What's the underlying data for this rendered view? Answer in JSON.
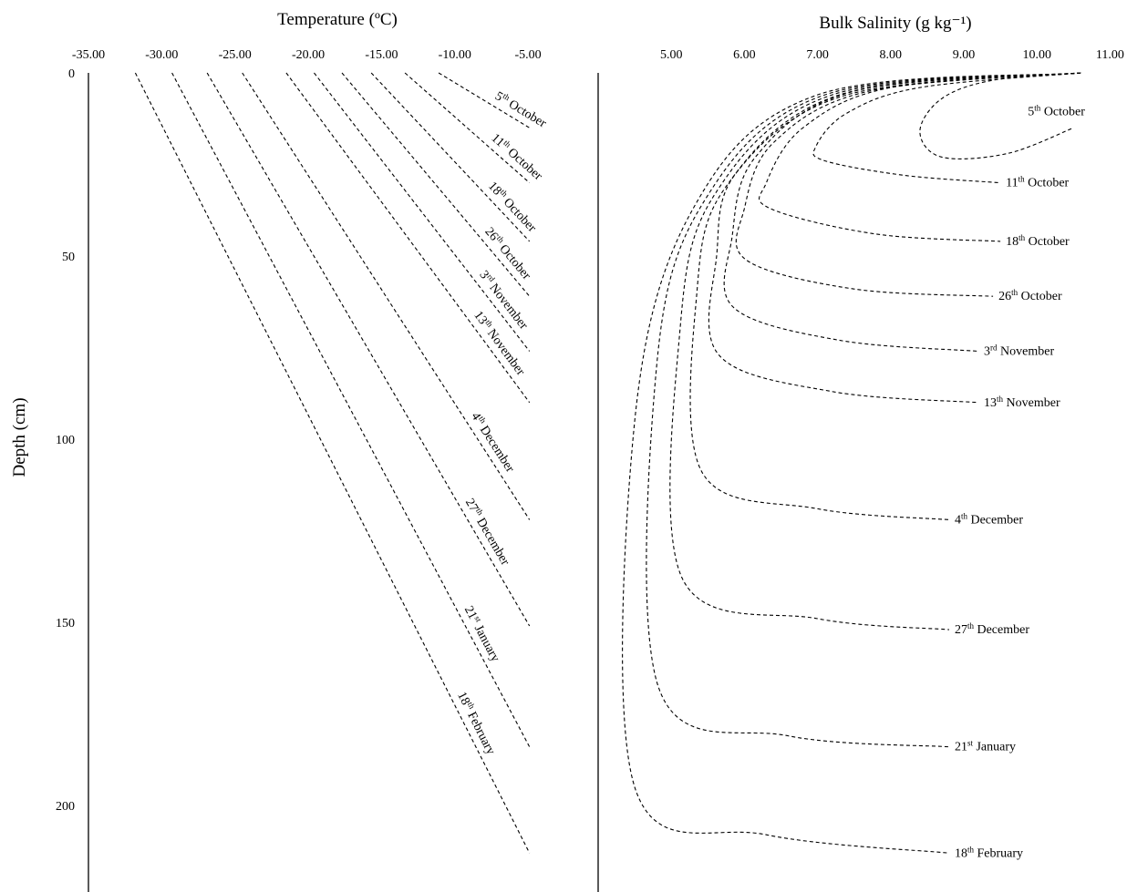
{
  "chart_data": [
    {
      "type": "line",
      "title": "",
      "xlabel": "Temperature (ºC)",
      "ylabel": "Depth (cm)",
      "x_ticks": [
        "-35.00",
        "-30.00",
        "-25.00",
        "-20.00",
        "-15.00",
        "-10.00",
        "-5.00"
      ],
      "y_ticks": [
        "0",
        "50",
        "100",
        "150",
        "200"
      ],
      "xlim": [
        -35,
        0
      ],
      "ylim": [
        223,
        0
      ],
      "x_axis_position": "top",
      "grid": false,
      "line_style": "dashed",
      "series": [
        {
          "name": "5th October",
          "ord": "5",
          "sup": "th",
          "rest": " October",
          "x": [
            -11.1,
            -4.9
          ],
          "y": [
            0,
            15
          ]
        },
        {
          "name": "11th October",
          "ord": "11",
          "sup": "th",
          "rest": " October",
          "x": [
            -13.4,
            -4.9
          ],
          "y": [
            0,
            30
          ]
        },
        {
          "name": "18th October",
          "ord": "18",
          "sup": "th",
          "rest": " October",
          "x": [
            -15.7,
            -4.9
          ],
          "y": [
            0,
            46
          ]
        },
        {
          "name": "26th October",
          "ord": "26",
          "sup": "th",
          "rest": " October",
          "x": [
            -17.7,
            -4.9
          ],
          "y": [
            0,
            61
          ]
        },
        {
          "name": "3rd November",
          "ord": "3",
          "sup": "rd",
          "rest": " November",
          "x": [
            -19.6,
            -4.9
          ],
          "y": [
            0,
            76
          ]
        },
        {
          "name": "13th November",
          "ord": "13",
          "sup": "th",
          "rest": " November",
          "x": [
            -21.5,
            -4.9
          ],
          "y": [
            0,
            90
          ]
        },
        {
          "name": "4th December",
          "ord": "4",
          "sup": "th",
          "rest": " December",
          "x": [
            -24.5,
            -4.9
          ],
          "y": [
            0,
            122
          ]
        },
        {
          "name": "27th December",
          "ord": "27",
          "sup": "th",
          "rest": " December",
          "x": [
            -26.9,
            -4.9
          ],
          "y": [
            0,
            151
          ]
        },
        {
          "name": "21st January",
          "ord": "21",
          "sup": "st",
          "rest": " January",
          "x": [
            -29.3,
            -4.9
          ],
          "y": [
            0,
            184
          ]
        },
        {
          "name": "18th February",
          "ord": "18",
          "sup": "th",
          "rest": " February",
          "x": [
            -31.8,
            -4.9
          ],
          "y": [
            0,
            213
          ]
        }
      ]
    },
    {
      "type": "line",
      "title": "",
      "xlabel": "Bulk Salinity (g kg⁻¹)",
      "ylabel": "",
      "x_ticks": [
        "5.00",
        "6.00",
        "7.00",
        "8.00",
        "9.00",
        "10.00",
        "11.00"
      ],
      "xlim": [
        4.0,
        11.0
      ],
      "ylim": [
        223,
        0
      ],
      "x_axis_position": "top",
      "grid": false,
      "line_style": "dashed",
      "series": [
        {
          "name": "5th October",
          "ord": "5",
          "sup": "th",
          "rest": " October",
          "x": [
            10.6,
            9.4,
            8.7,
            8.4,
            8.7,
            9.6,
            10.5
          ],
          "y": [
            0,
            2,
            7,
            16,
            23,
            22,
            15
          ]
        },
        {
          "name": "11th October",
          "ord": "11",
          "sup": "th",
          "rest": " October",
          "x": [
            10.6,
            8.4,
            7.4,
            6.98,
            7.1,
            8.2,
            9.5
          ],
          "y": [
            0,
            4,
            11,
            20,
            24,
            28,
            30
          ]
        },
        {
          "name": "18th October",
          "ord": "18",
          "sup": "th",
          "rest": " October",
          "x": [
            10.6,
            8.0,
            6.8,
            6.3,
            6.35,
            7.8,
            9.5
          ],
          "y": [
            0,
            4,
            15,
            30,
            37,
            44,
            46
          ]
        },
        {
          "name": "26th October",
          "ord": "26",
          "sup": "th",
          "rest": " October",
          "x": [
            10.6,
            7.7,
            6.4,
            6.0,
            6.02,
            7.5,
            9.4
          ],
          "y": [
            0,
            5,
            19,
            37,
            51,
            59,
            61
          ]
        },
        {
          "name": "3rd November",
          "ord": "3",
          "sup": "rd",
          "rest": " November",
          "x": [
            10.6,
            7.5,
            6.15,
            5.83,
            5.85,
            7.3,
            9.2
          ],
          "y": [
            0,
            5,
            23,
            45,
            64,
            73,
            76
          ]
        },
        {
          "name": "13th November",
          "ord": "13",
          "sup": "th",
          "rest": " November",
          "x": [
            10.6,
            7.4,
            5.9,
            5.62,
            5.65,
            7.2,
            9.2
          ],
          "y": [
            0,
            6,
            27,
            50,
            77,
            87,
            90
          ]
        },
        {
          "name": "4th December",
          "ord": "4",
          "sup": "th",
          "rest": " December",
          "x": [
            10.6,
            7.3,
            5.75,
            5.35,
            5.42,
            7.0,
            8.8
          ],
          "y": [
            0,
            6,
            31,
            60,
            109,
            119,
            122
          ]
        },
        {
          "name": "27th December",
          "ord": "27",
          "sup": "th",
          "rest": " December",
          "x": [
            10.6,
            7.2,
            5.6,
            5.12,
            5.15,
            7.0,
            8.8
          ],
          "y": [
            0,
            6,
            33,
            70,
            138,
            149,
            152
          ]
        },
        {
          "name": "21st January",
          "ord": "21",
          "sup": "st",
          "rest": " January",
          "x": [
            10.6,
            7.1,
            5.45,
            4.8,
            4.83,
            6.6,
            8.8
          ],
          "y": [
            0,
            6,
            35,
            80,
            168,
            181,
            184
          ]
        },
        {
          "name": "18th February",
          "ord": "18",
          "sup": "th",
          "rest": " February",
          "x": [
            10.6,
            7.0,
            5.3,
            4.5,
            4.5,
            6.3,
            8.8
          ],
          "y": [
            0,
            6,
            37,
            95,
            195,
            208,
            213
          ]
        }
      ]
    }
  ]
}
